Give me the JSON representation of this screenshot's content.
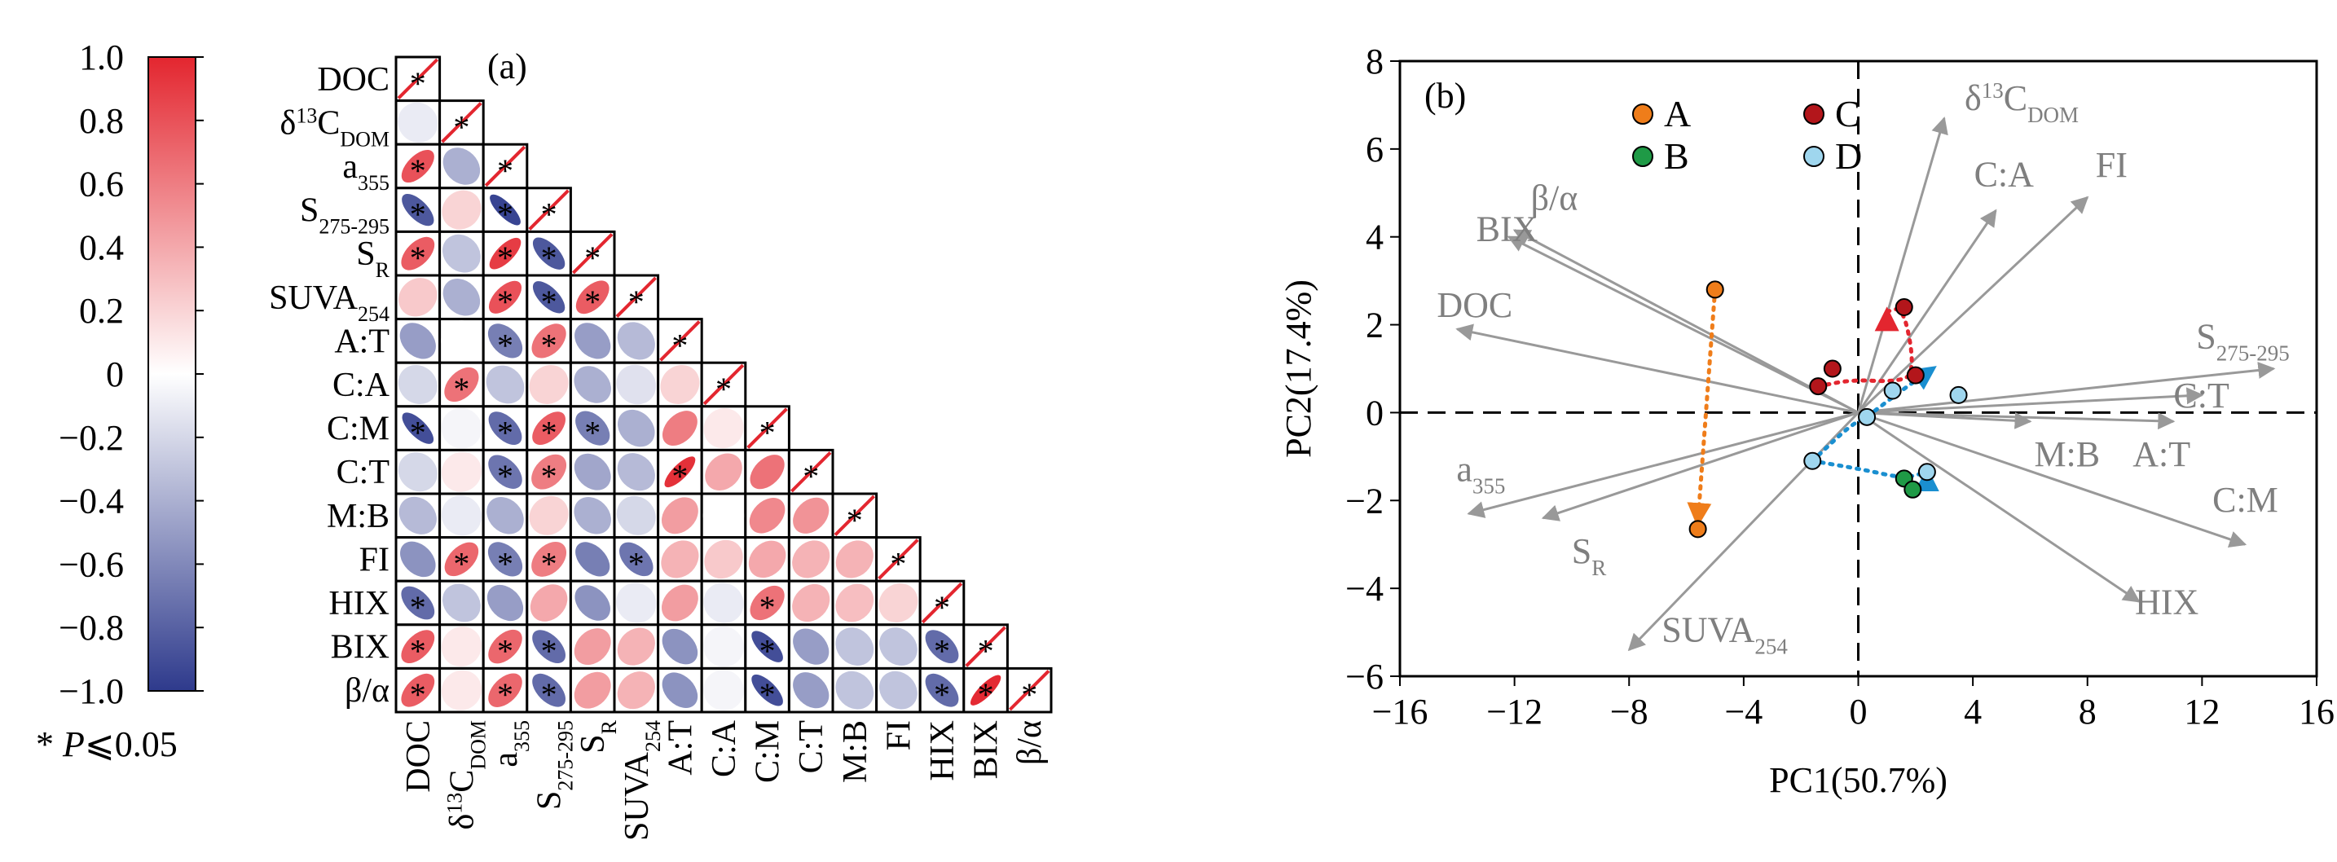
{
  "chart_data": [
    {
      "type": "heatmap",
      "panel_label": "(a)",
      "variables": [
        "DOC",
        "δ13CDOM",
        "a355",
        "S275-295",
        "SR",
        "SUVA254",
        "A:T",
        "C:A",
        "C:M",
        "C:T",
        "M:B",
        "FI",
        "HIX",
        "BIX",
        "β/α"
      ],
      "variable_labels": [
        {
          "base": "DOC"
        },
        {
          "pre": "δ",
          "sup": "13",
          "base": "C",
          "sub": "DOM"
        },
        {
          "base": "a",
          "sub": "355"
        },
        {
          "base": "S",
          "sub": "275-295"
        },
        {
          "base": "S",
          "sub": "R"
        },
        {
          "base": "SUVA",
          "sub": "254"
        },
        {
          "base": "A:T"
        },
        {
          "base": "C:A"
        },
        {
          "base": "C:M"
        },
        {
          "base": "C:T"
        },
        {
          "base": "M:B"
        },
        {
          "base": "FI"
        },
        {
          "base": "HIX"
        },
        {
          "base": "BIX"
        },
        {
          "base": "β/α"
        }
      ],
      "correlation_matrix": [
        [
          1.0
        ],
        [
          -0.1,
          1.0
        ],
        [
          0.8,
          -0.4,
          1.0
        ],
        [
          -0.85,
          0.2,
          -0.95,
          1.0
        ],
        [
          0.75,
          -0.3,
          0.9,
          -0.85,
          1.0
        ],
        [
          0.25,
          -0.4,
          0.8,
          -0.85,
          0.75,
          1.0
        ],
        [
          -0.5,
          0.0,
          -0.65,
          0.65,
          -0.5,
          -0.35,
          1.0
        ],
        [
          -0.2,
          0.65,
          -0.3,
          0.2,
          -0.4,
          -0.15,
          0.2,
          1.0
        ],
        [
          -0.9,
          -0.05,
          -0.75,
          0.75,
          -0.65,
          -0.4,
          0.6,
          0.1,
          1.0
        ],
        [
          -0.2,
          0.1,
          -0.7,
          0.6,
          -0.45,
          -0.35,
          0.95,
          0.4,
          0.65,
          1.0
        ],
        [
          -0.35,
          -0.1,
          -0.4,
          0.2,
          -0.4,
          -0.2,
          0.45,
          0.0,
          0.55,
          0.5,
          1.0
        ],
        [
          -0.55,
          0.7,
          -0.65,
          0.6,
          -0.65,
          -0.7,
          0.35,
          0.25,
          0.4,
          0.35,
          0.35,
          1.0
        ],
        [
          -0.75,
          -0.3,
          -0.5,
          0.4,
          -0.55,
          -0.1,
          0.45,
          -0.1,
          0.65,
          0.35,
          0.3,
          0.2,
          1.0
        ],
        [
          0.75,
          0.1,
          0.7,
          -0.75,
          0.45,
          0.35,
          -0.55,
          -0.05,
          -0.9,
          -0.5,
          -0.3,
          -0.3,
          -0.75,
          1.0
        ],
        [
          0.75,
          0.1,
          0.7,
          -0.75,
          0.45,
          0.35,
          -0.55,
          -0.05,
          -0.9,
          -0.5,
          -0.3,
          -0.3,
          -0.75,
          0.98,
          1.0
        ]
      ],
      "significant": [
        [
          1
        ],
        [
          0,
          1
        ],
        [
          1,
          0,
          1
        ],
        [
          1,
          0,
          1,
          1
        ],
        [
          1,
          0,
          1,
          1,
          1
        ],
        [
          0,
          0,
          1,
          1,
          1,
          1
        ],
        [
          0,
          0,
          1,
          1,
          0,
          0,
          1
        ],
        [
          0,
          1,
          0,
          0,
          0,
          0,
          0,
          1
        ],
        [
          1,
          0,
          1,
          1,
          1,
          0,
          0,
          0,
          1
        ],
        [
          0,
          0,
          1,
          1,
          0,
          0,
          1,
          0,
          0,
          1
        ],
        [
          0,
          0,
          0,
          0,
          0,
          0,
          0,
          0,
          0,
          0,
          1
        ],
        [
          0,
          1,
          1,
          1,
          0,
          1,
          0,
          0,
          0,
          0,
          0,
          1
        ],
        [
          1,
          0,
          0,
          0,
          0,
          0,
          0,
          0,
          1,
          0,
          0,
          0,
          1
        ],
        [
          1,
          0,
          1,
          1,
          0,
          0,
          0,
          0,
          1,
          0,
          0,
          0,
          1,
          1
        ],
        [
          1,
          0,
          1,
          1,
          0,
          0,
          0,
          0,
          1,
          0,
          0,
          0,
          1,
          1,
          1
        ]
      ],
      "significance_marker": "*",
      "colorbar": {
        "range": [
          -1.0,
          1.0
        ],
        "ticks": [
          "1.0",
          "0.8",
          "0.6",
          "0.4",
          "0.2",
          "0",
          "−0.2",
          "−0.4",
          "−0.6",
          "−0.8",
          "−1.0"
        ],
        "colors": {
          "negative": "#2e3a8c",
          "zero": "#ffffff",
          "positive": "#e3262f"
        }
      },
      "footnote": {
        "prefix": "* ",
        "italic": "P",
        "suffix": "⩽0.05"
      }
    },
    {
      "type": "scatter",
      "panel_label": "(b)",
      "title": "",
      "xlabel": "PC1(50.7%)",
      "ylabel": "PC2(17.4%)",
      "xlim": [
        -16,
        16
      ],
      "ylim": [
        -6,
        8
      ],
      "xticks": [
        -16,
        -12,
        -8,
        -4,
        0,
        4,
        8,
        12,
        16
      ],
      "yticks": [
        -6,
        -4,
        -2,
        0,
        2,
        4,
        6,
        8
      ],
      "xtick_labels": [
        "−16",
        "−12",
        "−8",
        "−4",
        "0",
        "4",
        "8",
        "12",
        "16"
      ],
      "ytick_labels": [
        "−6",
        "−4",
        "−2",
        "0",
        "2",
        "4",
        "6",
        "8"
      ],
      "groups": [
        {
          "name": "A",
          "color": "#ef7d1a",
          "points": [
            [
              -5.0,
              2.8
            ],
            [
              -5.6,
              -2.65
            ]
          ]
        },
        {
          "name": "B",
          "color": "#1f9a46",
          "points": [
            [
              1.6,
              -1.5
            ],
            [
              1.9,
              -1.75
            ]
          ]
        },
        {
          "name": "C",
          "color": "#b3161b",
          "points": [
            [
              -1.4,
              0.6
            ],
            [
              -0.9,
              1.0
            ],
            [
              1.6,
              2.4
            ],
            [
              2.0,
              0.85
            ]
          ]
        },
        {
          "name": "D",
          "color": "#9fd6ee",
          "points": [
            [
              1.2,
              0.5
            ],
            [
              0.3,
              -0.1
            ],
            [
              3.5,
              0.4
            ],
            [
              -1.6,
              -1.1
            ],
            [
              2.4,
              -1.35
            ]
          ]
        }
      ],
      "trajectories": [
        {
          "group": "A",
          "color": "#ef7d1a",
          "from": [
            -5.0,
            2.8
          ],
          "to": [
            -5.6,
            -2.5
          ]
        },
        {
          "group": "C",
          "color": "#e3262f",
          "path": [
            [
              -1.4,
              0.6
            ],
            [
              -0.2,
              0.75
            ],
            [
              1.2,
              0.7
            ],
            [
              2.0,
              0.85
            ],
            [
              1.6,
              2.4
            ],
            [
              1.0,
              2.3
            ]
          ]
        },
        {
          "group": "D",
          "color": "#1a8fd0",
          "path": [
            [
              -1.6,
              -1.1
            ],
            [
              -0.3,
              -0.3
            ],
            [
              0.3,
              -0.1
            ],
            [
              1.5,
              0.5
            ],
            [
              2.6,
              1.0
            ]
          ]
        },
        {
          "group": "D",
          "color": "#1a8fd0",
          "path": [
            [
              -1.6,
              -1.1
            ],
            [
              0.2,
              -1.3
            ],
            [
              1.6,
              -1.5
            ],
            [
              2.4,
              -1.35
            ]
          ]
        }
      ],
      "loadings": [
        {
          "name": "δ13CDOM",
          "x": 3.0,
          "y": 6.7,
          "label": {
            "pre": "δ",
            "sup": "13",
            "base": "C",
            "sub": "DOM"
          }
        },
        {
          "name": "C:A",
          "x": 4.8,
          "y": 4.6,
          "label": {
            "base": "C:A"
          }
        },
        {
          "name": "FI",
          "x": 8.0,
          "y": 4.9,
          "label": {
            "base": "FI"
          }
        },
        {
          "name": "β/α",
          "x": -12.0,
          "y": 4.15,
          "label": {
            "base": "β/α"
          }
        },
        {
          "name": "BIX",
          "x": -12.2,
          "y": 4.0,
          "label": {
            "base": "BIX"
          }
        },
        {
          "name": "DOC",
          "x": -14.0,
          "y": 1.9,
          "label": {
            "base": "DOC"
          }
        },
        {
          "name": "S275-295",
          "x": 14.5,
          "y": 1.0,
          "label": {
            "base": "S",
            "sub": "275-295"
          }
        },
        {
          "name": "C:T",
          "x": 12.0,
          "y": 0.4,
          "label": {
            "base": "C:T"
          }
        },
        {
          "name": "M:B",
          "x": 6.0,
          "y": -0.2,
          "label": {
            "base": "M:B"
          }
        },
        {
          "name": "A:T",
          "x": 11.0,
          "y": -0.2,
          "label": {
            "base": "A:T"
          }
        },
        {
          "name": "C:M",
          "x": 13.5,
          "y": -3.0,
          "label": {
            "base": "C:M"
          }
        },
        {
          "name": "HIX",
          "x": 9.8,
          "y": -4.3,
          "label": {
            "base": "HIX"
          }
        },
        {
          "name": "a355",
          "x": -13.6,
          "y": -2.3,
          "label": {
            "base": "a",
            "sub": "355"
          }
        },
        {
          "name": "SR",
          "x": -11.0,
          "y": -2.4,
          "label": {
            "base": "S",
            "sub": "R"
          }
        },
        {
          "name": "SUVA254",
          "x": -8.0,
          "y": -5.4,
          "label": {
            "base": "SUVA",
            "sub": "254"
          }
        }
      ],
      "legend": [
        "A",
        "B",
        "C",
        "D"
      ]
    }
  ]
}
